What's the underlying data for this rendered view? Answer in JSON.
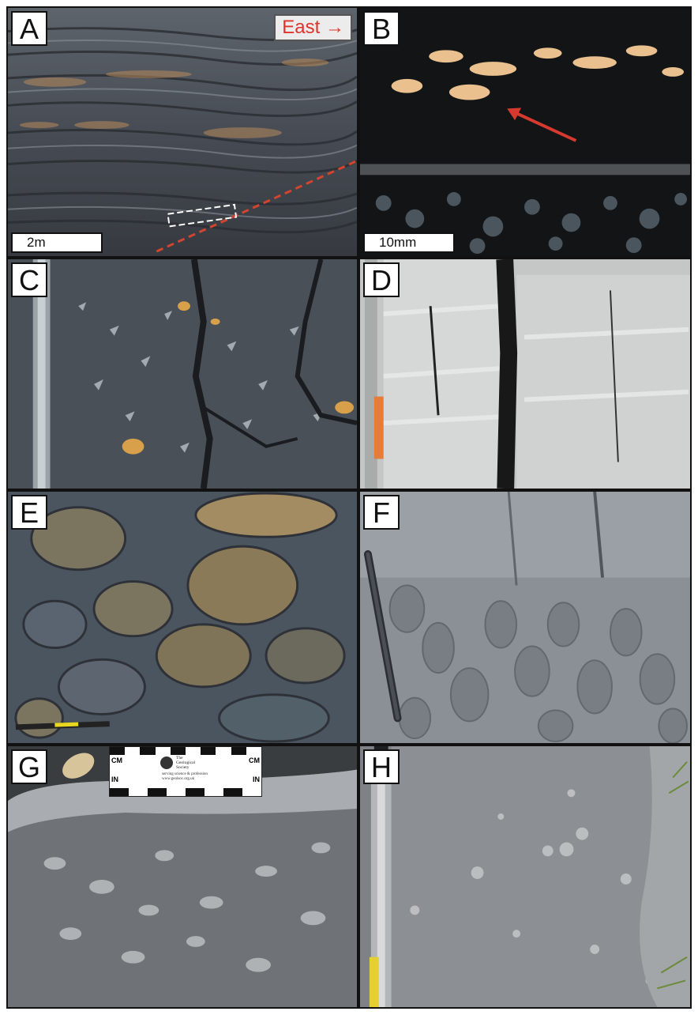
{
  "panels": [
    {
      "letter": "A",
      "scale": "2m",
      "direction_label": "East →"
    },
    {
      "letter": "B",
      "scale": "10mm"
    },
    {
      "letter": "C"
    },
    {
      "letter": "D"
    },
    {
      "letter": "E"
    },
    {
      "letter": "F"
    },
    {
      "letter": "G",
      "card": {
        "cm": "CM",
        "in": "IN",
        "society": [
          "The",
          "Geological",
          "Society"
        ],
        "web": [
          "serving science & profession",
          "www.geolsoc.org.uk"
        ]
      }
    },
    {
      "letter": "H"
    }
  ],
  "colors": {
    "frame": "#111111",
    "direction_label": "#e0332c",
    "dashed_line": "#d4442f",
    "arrow": "#d63a2e"
  }
}
